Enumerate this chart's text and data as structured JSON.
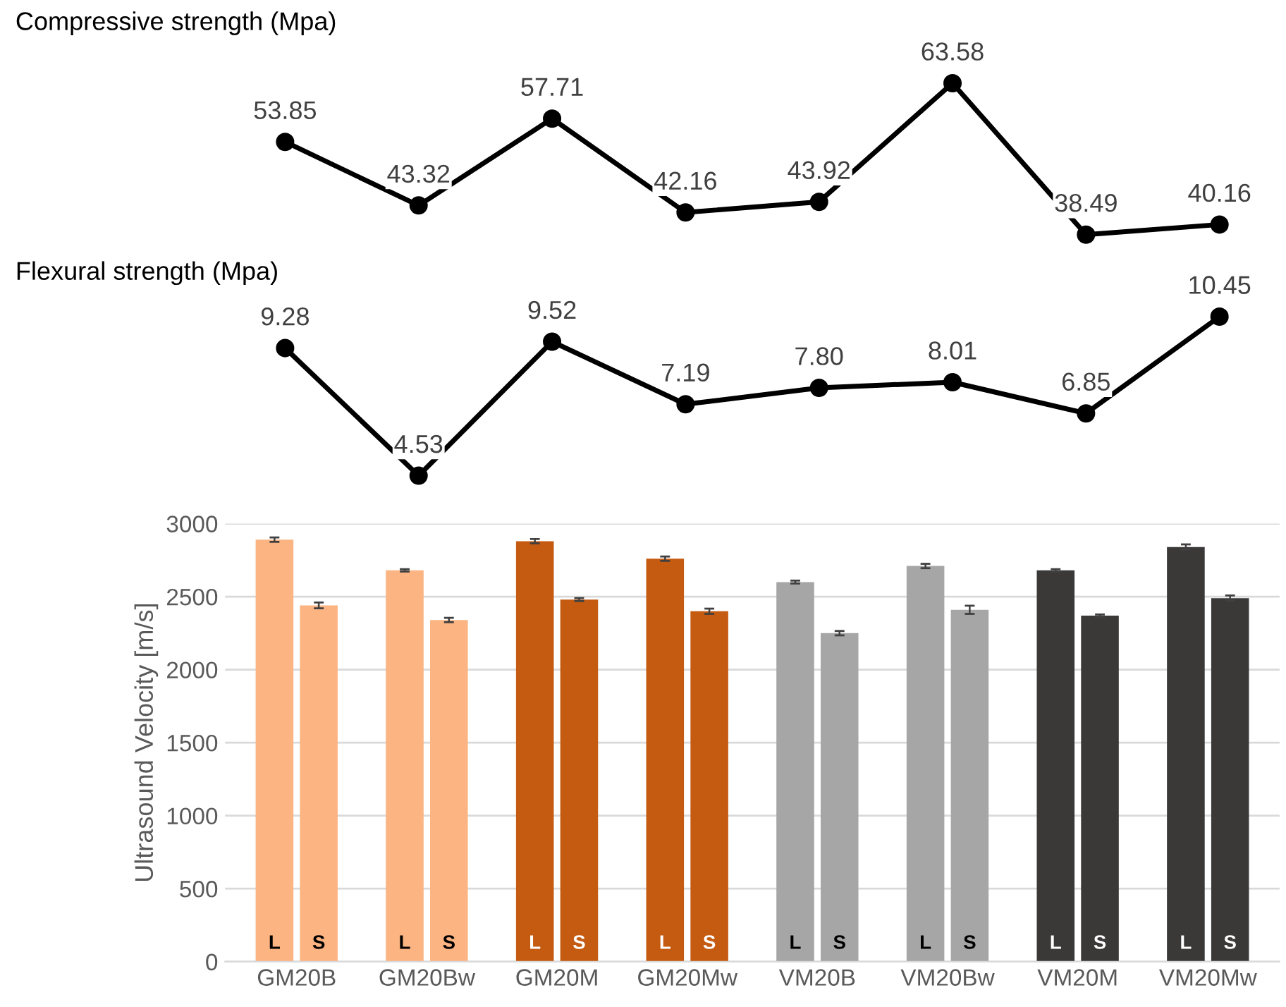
{
  "chart_data": [
    {
      "type": "line",
      "title": "Compressive strength (Mpa)",
      "categories": [
        null,
        null,
        null,
        null,
        null,
        null,
        null,
        null
      ],
      "tick_labels": false,
      "marker": "circle",
      "line_style": "solid",
      "series": [
        {
          "color": "#000000",
          "values": [
            53.85,
            43.32,
            57.71,
            42.16,
            43.92,
            63.58,
            38.49,
            40.16
          ],
          "value_labels": [
            "53.85",
            "43.32",
            "57.71",
            "42.16",
            "43.92",
            "63.58",
            "38.49",
            "40.16"
          ]
        }
      ]
    },
    {
      "type": "line",
      "title": "Flexural strength (Mpa)",
      "categories": [
        null,
        null,
        null,
        null,
        null,
        null,
        null,
        null
      ],
      "tick_labels": false,
      "marker": "circle",
      "line_style": "solid",
      "series": [
        {
          "color": "#000000",
          "values": [
            9.28,
            4.53,
            9.52,
            7.19,
            7.8,
            8.01,
            6.85,
            10.45
          ],
          "value_labels": [
            "9.28",
            "4.53",
            "9.52",
            "7.19",
            "7.80",
            "8.01",
            "6.85",
            "10.45"
          ]
        }
      ]
    },
    {
      "type": "bar",
      "ylabel": "Ultrasound Velocity [m/s]",
      "categories": [
        "GM20B",
        "GM20Bw",
        "GM20M",
        "GM20Mw",
        "VM20B",
        "VM20Bw",
        "VM20M",
        "VM20Mw"
      ],
      "ylim": [
        0,
        3000
      ],
      "yticks": [
        0,
        500,
        1000,
        1500,
        2000,
        2500,
        3000
      ],
      "grid": "y",
      "legend": false,
      "tick_labels": "xy",
      "series": [
        {
          "name": "L",
          "colors": [
            "#fbb482",
            "#fbb482",
            "#c55a11",
            "#c55a11",
            "#a6a6a6",
            "#a6a6a6",
            "#3b3838",
            "#3b3838"
          ],
          "values": [
            2890,
            2680,
            2880,
            2760,
            2600,
            2710,
            2680,
            2840
          ],
          "errors": [
            15,
            8,
            15,
            15,
            10,
            15,
            8,
            18
          ]
        },
        {
          "name": "S",
          "colors": [
            "#fbb482",
            "#fbb482",
            "#c55a11",
            "#c55a11",
            "#a6a6a6",
            "#a6a6a6",
            "#3b3838",
            "#3b3838"
          ],
          "values": [
            2440,
            2340,
            2480,
            2400,
            2250,
            2410,
            2370,
            2490
          ],
          "errors": [
            20,
            15,
            10,
            18,
            15,
            28,
            8,
            18
          ]
        }
      ]
    }
  ]
}
